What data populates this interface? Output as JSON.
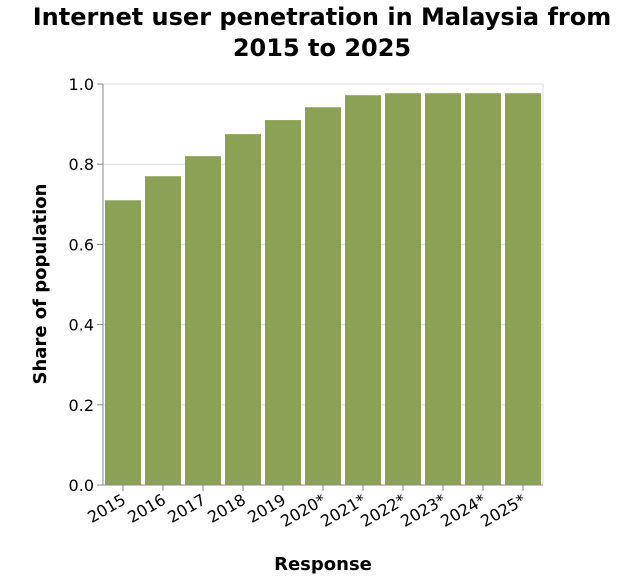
{
  "chart_data": {
    "type": "bar",
    "title_line1": "Internet user penetration in Malaysia from",
    "title_line2": "2015 to 2025",
    "xlabel": "Response",
    "ylabel": "Share of population",
    "categories": [
      "2015",
      "2016",
      "2017",
      "2018",
      "2019",
      "2020*",
      "2021*",
      "2022*",
      "2023*",
      "2024*",
      "2025*"
    ],
    "values": [
      0.71,
      0.77,
      0.82,
      0.875,
      0.91,
      0.942,
      0.972,
      0.977,
      0.977,
      0.977,
      0.977
    ],
    "ylim": [
      0,
      1
    ],
    "yticks": [
      "0.0",
      "0.2",
      "0.4",
      "0.6",
      "0.8",
      "1.0"
    ],
    "grid": true,
    "bar_color": "#8ba155",
    "grid_color": "#dddddd"
  }
}
